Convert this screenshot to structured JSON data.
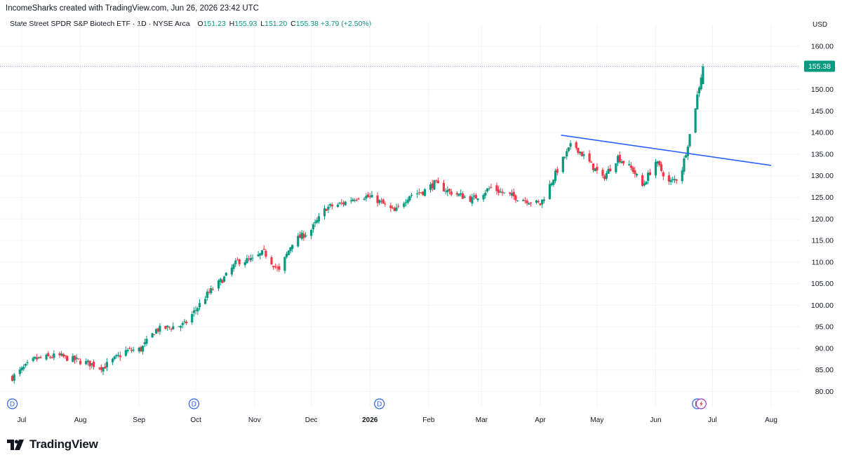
{
  "credit": "IncomeSharks created with TradingView.com, Jun 26, 2026 23:42 UTC",
  "legend": {
    "title": "State Street SPDR S&P Biotech ETF · 1D · NYSE Arca",
    "o_label": "O",
    "o_value": "151.23",
    "h_label": "H",
    "h_value": "155.93",
    "l_label": "L",
    "l_value": "151.20",
    "c_label": "C",
    "c_value": "155.38",
    "change": "+3.79 (+2.50%)"
  },
  "currency": "USD",
  "brand": "TradingView",
  "colors": {
    "up": "#089981",
    "down": "#F23645",
    "trendline": "#2962FF",
    "grid": "#F0F3FA",
    "price_line": "#9598F7"
  },
  "chart_data": {
    "type": "candlestick",
    "y_ticks": [
      "160.00",
      "155.00",
      "150.00",
      "145.00",
      "140.00",
      "135.00",
      "130.00",
      "125.00",
      "120.00",
      "115.00",
      "110.00",
      "105.00",
      "100.00",
      "95.00",
      "90.00",
      "85.00",
      "80.00"
    ],
    "ylim": [
      78,
      164
    ],
    "last_price": "155.38",
    "x_labels": [
      "Jul",
      "Aug",
      "Sep",
      "Oct",
      "Nov",
      "Dec",
      "2026",
      "Feb",
      "Mar",
      "Apr",
      "May",
      "Jun",
      "Jul",
      "Aug"
    ],
    "bold_x_labels": [
      "2026"
    ],
    "anchors": [
      {
        "date": "2025-06-26",
        "price": 83.3
      },
      {
        "date": "2025-07-08",
        "price": 87.5
      },
      {
        "date": "2025-07-20",
        "price": 88.3
      },
      {
        "date": "2025-08-03",
        "price": 86.8
      },
      {
        "date": "2025-08-13",
        "price": 85.6
      },
      {
        "date": "2025-08-25",
        "price": 89.4
      },
      {
        "date": "2025-09-02",
        "price": 89.8
      },
      {
        "date": "2025-09-10",
        "price": 94.3
      },
      {
        "date": "2025-09-25",
        "price": 95.5
      },
      {
        "date": "2025-10-07",
        "price": 102.5
      },
      {
        "date": "2025-10-17",
        "price": 106.8
      },
      {
        "date": "2025-10-23",
        "price": 110.2
      },
      {
        "date": "2025-10-31",
        "price": 110.5
      },
      {
        "date": "2025-11-06",
        "price": 112.3
      },
      {
        "date": "2025-11-14",
        "price": 107.8
      },
      {
        "date": "2025-11-21",
        "price": 114.6
      },
      {
        "date": "2025-12-01",
        "price": 117.5
      },
      {
        "date": "2025-12-09",
        "price": 122.6
      },
      {
        "date": "2025-12-17",
        "price": 123.5
      },
      {
        "date": "2025-12-27",
        "price": 125.5
      },
      {
        "date": "2026-01-04",
        "price": 124.6
      },
      {
        "date": "2026-01-14",
        "price": 121.6
      },
      {
        "date": "2026-01-22",
        "price": 125.6
      },
      {
        "date": "2026-01-29",
        "price": 126.3
      },
      {
        "date": "2026-02-04",
        "price": 128.2
      },
      {
        "date": "2026-02-12",
        "price": 126.3
      },
      {
        "date": "2026-02-24",
        "price": 124.5
      },
      {
        "date": "2026-03-06",
        "price": 127.3
      },
      {
        "date": "2026-03-14",
        "price": 125.6
      },
      {
        "date": "2026-03-23",
        "price": 124.6
      },
      {
        "date": "2026-04-01",
        "price": 123.4
      },
      {
        "date": "2026-04-10",
        "price": 131.3
      },
      {
        "date": "2026-04-18",
        "price": 137.6
      },
      {
        "date": "2026-04-28",
        "price": 132.5
      },
      {
        "date": "2026-05-04",
        "price": 129.3
      },
      {
        "date": "2026-05-12",
        "price": 134.3
      },
      {
        "date": "2026-05-20",
        "price": 131.3
      },
      {
        "date": "2026-05-25",
        "price": 127.6
      },
      {
        "date": "2026-06-01",
        "price": 133.3
      },
      {
        "date": "2026-06-08",
        "price": 128.4
      },
      {
        "date": "2026-06-14",
        "price": 129.8
      },
      {
        "date": "2026-06-18",
        "price": 137.5
      },
      {
        "date": "2026-06-21",
        "price": 143.5
      },
      {
        "date": "2026-06-23",
        "price": 148.6
      },
      {
        "date": "2026-06-26",
        "price": 155.38
      }
    ],
    "trendline": [
      {
        "date": "2026-04-12",
        "price": 139.4
      },
      {
        "date": "2026-08-01",
        "price": 132.4
      }
    ],
    "event_markers": [
      {
        "date": "2025-06-26",
        "type": "D"
      },
      {
        "date": "2025-09-30",
        "type": "D"
      },
      {
        "date": "2026-01-06",
        "type": "D"
      },
      {
        "date": "2026-06-23",
        "type": "D"
      },
      {
        "date": "2026-06-25",
        "type": "E"
      }
    ]
  }
}
